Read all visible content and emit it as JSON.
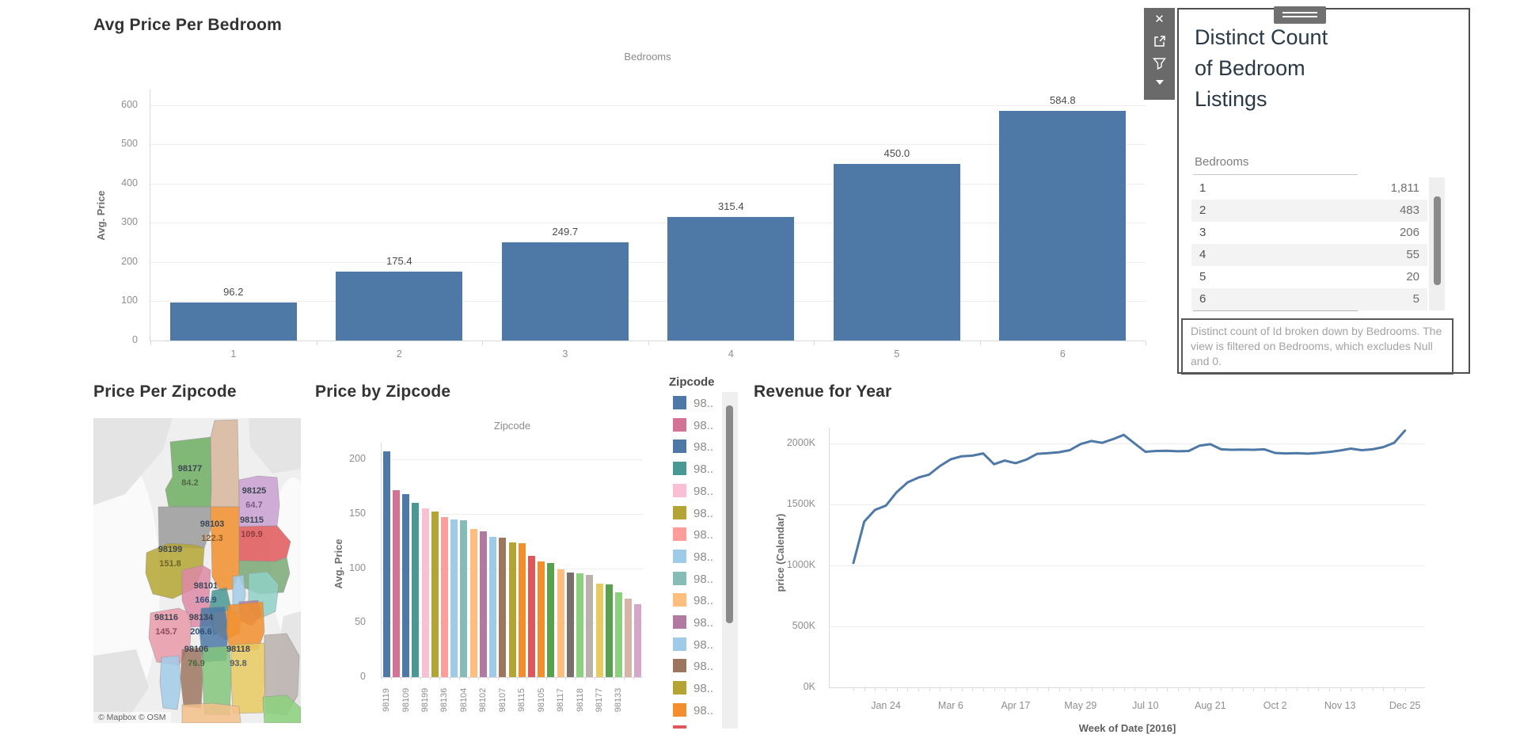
{
  "legend": {
    "title": "Zipcode",
    "items": [
      {
        "label": "98..",
        "color": "#4e79a7"
      },
      {
        "label": "98..",
        "color": "#d37295"
      },
      {
        "label": "98..",
        "color": "#4e79a7"
      },
      {
        "label": "98..",
        "color": "#499894"
      },
      {
        "label": "98..",
        "color": "#fabfd2"
      },
      {
        "label": "98..",
        "color": "#b3a433"
      },
      {
        "label": "98..",
        "color": "#ff9d9a"
      },
      {
        "label": "98..",
        "color": "#a0cbe8"
      },
      {
        "label": "98..",
        "color": "#86bcb6"
      },
      {
        "label": "98..",
        "color": "#ffbe7d"
      },
      {
        "label": "98..",
        "color": "#b07aa1"
      },
      {
        "label": "98..",
        "color": "#a0cbe8"
      },
      {
        "label": "98..",
        "color": "#9d7660"
      },
      {
        "label": "98..",
        "color": "#b3a433"
      },
      {
        "label": "98..",
        "color": "#f28e2b"
      },
      {
        "label": "98..",
        "color": "#e15759"
      }
    ]
  },
  "tooltip": {
    "title": "Distinct Count of Bedroom Listings",
    "table": {
      "header": "Bedrooms",
      "rows": [
        [
          "1",
          "1,811"
        ],
        [
          "2",
          "483"
        ],
        [
          "3",
          "206"
        ],
        [
          "4",
          "55"
        ],
        [
          "5",
          "20"
        ],
        [
          "6",
          "5"
        ]
      ]
    },
    "caption": "Distinct count of Id broken down by Bedrooms. The view is filtered on Bedrooms, which excludes Null and 0.",
    "toolbar": [
      "close",
      "open-external",
      "filter",
      "caret-down"
    ]
  },
  "chart_data": [
    {
      "name": "avg-price-per-bedroom",
      "type": "bar",
      "title": "Avg Price Per Bedroom",
      "column_header": "Bedrooms",
      "xlabel": "Bedrooms",
      "ylabel": "Avg. Price",
      "categories": [
        "1",
        "2",
        "3",
        "4",
        "5",
        "6"
      ],
      "values": [
        96.2,
        175.4,
        249.7,
        315.4,
        450.0,
        584.8
      ],
      "bar_labels": [
        "96.2",
        "175.4",
        "249.7",
        "315.4",
        "450.0",
        "584.8"
      ],
      "y_ticks": [
        0,
        100,
        200,
        300,
        400,
        500,
        600
      ],
      "ylim": [
        0,
        640
      ],
      "grid": "horizontal",
      "legend": "none",
      "bar_color": "#4e79a7"
    },
    {
      "name": "price-per-zipcode-map",
      "type": "map",
      "title": "Price Per Zipcode",
      "attribution": "© Mapbox © OSM",
      "regions": [
        {
          "zip": "98177",
          "value": "84.2"
        },
        {
          "zip": "98125",
          "value": "64.7"
        },
        {
          "zip": "98103",
          "value": "122.3"
        },
        {
          "zip": "98115",
          "value": "109.9"
        },
        {
          "zip": "98199",
          "value": "151.8"
        },
        {
          "zip": "98101",
          "value": "166.9"
        },
        {
          "zip": "98116",
          "value": "145.7"
        },
        {
          "zip": "98134",
          "value": "206.6"
        },
        {
          "zip": "98106",
          "value": "76.9"
        },
        {
          "zip": "98118",
          "value": "93.8"
        }
      ]
    },
    {
      "name": "price-by-zipcode",
      "type": "bar",
      "title": "Price by Zipcode",
      "column_header": "Zipcode",
      "xlabel": "Zipcode",
      "ylabel": "Avg. Price",
      "values": [
        207,
        172,
        168,
        160,
        155,
        152,
        147,
        145,
        144,
        136,
        134,
        129,
        128,
        124,
        123,
        111,
        106,
        105,
        99,
        96,
        95,
        94,
        86,
        85,
        78,
        72,
        67
      ],
      "colors": [
        "#4e79a7",
        "#d37295",
        "#4e79a7",
        "#499894",
        "#fabfd2",
        "#b3a433",
        "#ff9d9a",
        "#a0cbe8",
        "#86bcb6",
        "#ffbe7d",
        "#b07aa1",
        "#a0cbe8",
        "#9d7660",
        "#b3a433",
        "#f28e2b",
        "#e15759",
        "#f28e2b",
        "#59a14f",
        "#ffbe7d",
        "#79706e",
        "#8cd17d",
        "#bab0ac",
        "#e7ca60",
        "#59a14f",
        "#8cd17d",
        "#d7b5a6",
        "#d4a6c8"
      ],
      "x_tick_labels": [
        "98119",
        "98109",
        "98199",
        "98136",
        "98104",
        "98102",
        "98107",
        "98115",
        "98105",
        "98117",
        "98118",
        "98177",
        "98133"
      ],
      "x_label_every": 2,
      "y_ticks": [
        0,
        50,
        100,
        150,
        200
      ],
      "ylim": [
        0,
        215
      ],
      "grid": "horizontal"
    },
    {
      "name": "revenue-for-year",
      "type": "line",
      "title": "Revenue for Year",
      "xlabel": "Week of Date [2016]",
      "ylabel": "price (Calendar)",
      "y_tick_values": [
        0,
        500,
        1000,
        1500,
        2000
      ],
      "y_tick_labels": [
        "0K",
        "500K",
        "1000K",
        "1500K",
        "2000K"
      ],
      "ylim": [
        0,
        2260
      ],
      "x_tick_labels": [
        "Jan 24",
        "Mar 6",
        "Apr 17",
        "May 29",
        "Jul 10",
        "Aug 21",
        "Oct 2",
        "Nov 13",
        "Dec 25"
      ],
      "x_tick_indices": [
        3,
        9,
        15,
        21,
        27,
        33,
        39,
        45,
        51
      ],
      "values": [
        1020,
        1360,
        1455,
        1490,
        1600,
        1680,
        1720,
        1745,
        1815,
        1870,
        1895,
        1900,
        1918,
        1830,
        1860,
        1838,
        1868,
        1915,
        1920,
        1928,
        1945,
        1995,
        2020,
        2005,
        2035,
        2070,
        2000,
        1932,
        1938,
        1940,
        1936,
        1938,
        1982,
        1994,
        1952,
        1948,
        1950,
        1948,
        1952,
        1922,
        1918,
        1920,
        1916,
        1922,
        1930,
        1942,
        1958,
        1945,
        1952,
        1970,
        2005,
        2105
      ],
      "line_color": "#4e79a7"
    }
  ]
}
